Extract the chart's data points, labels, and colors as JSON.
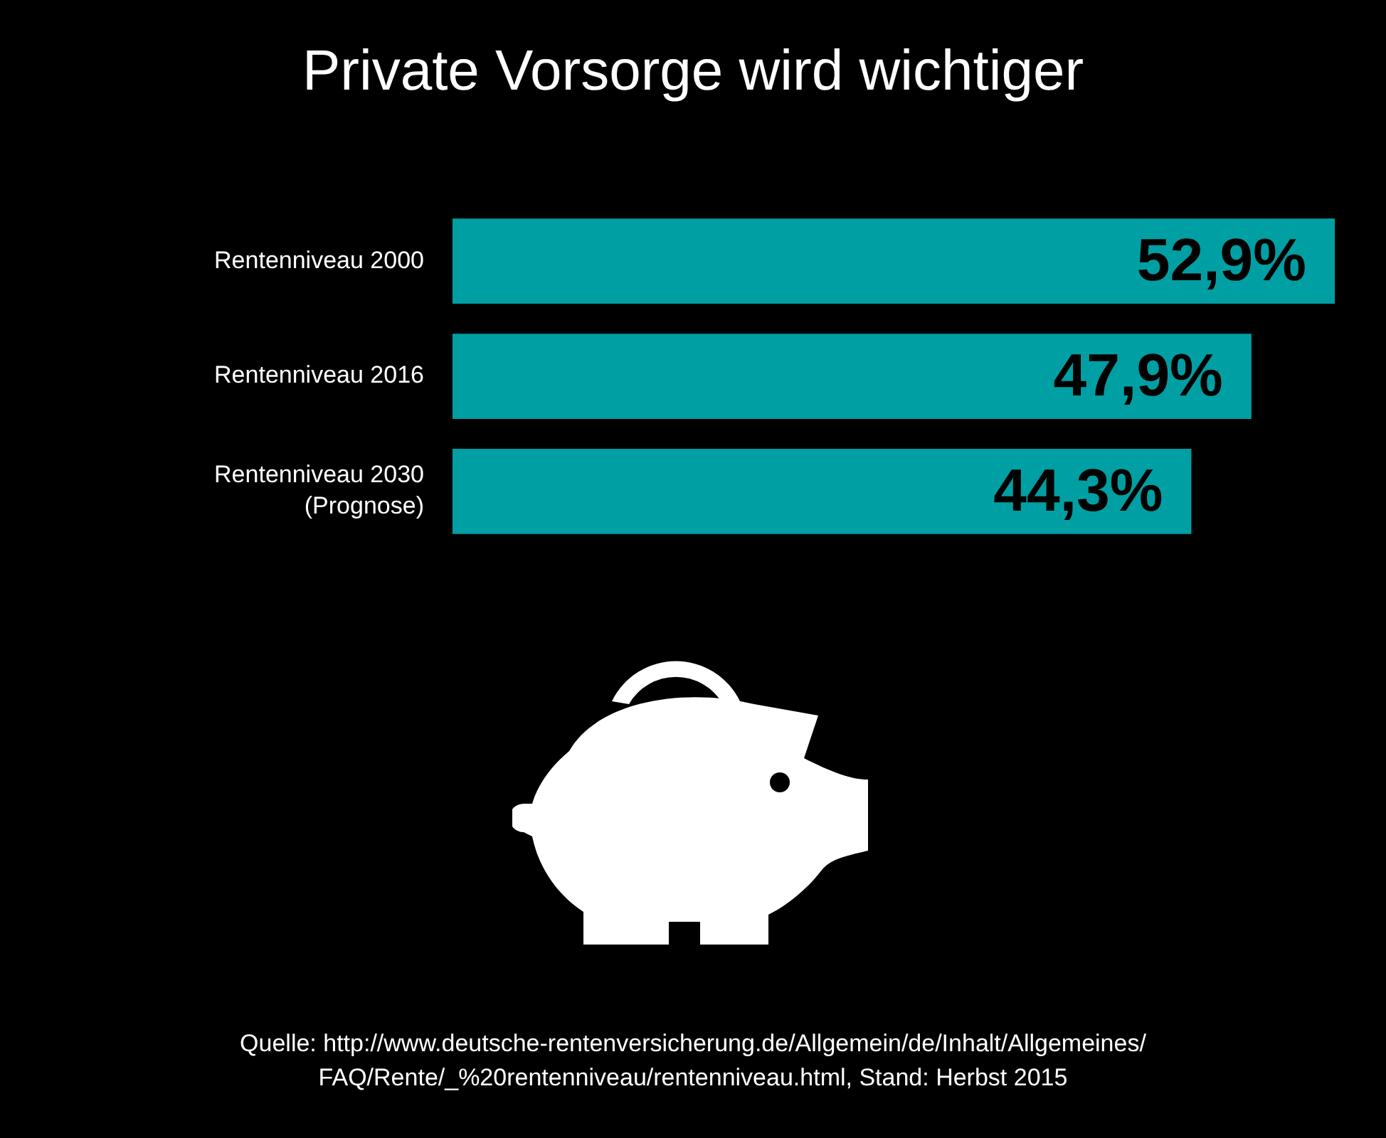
{
  "chart_data": {
    "type": "bar",
    "orientation": "horizontal",
    "title": "Private Vorsorge wird wichtiger",
    "categories": [
      "Rentenniveau 2000",
      "Rentenniveau 2016",
      "Rentenniveau 2030\n(Prognose)"
    ],
    "values": [
      52.9,
      47.9,
      44.3
    ],
    "value_labels": [
      "52,9%",
      "47,9%",
      "44,3%"
    ],
    "color": "#009fa3",
    "annotations": [
      "Quelle: http://www.deutsche-rentenversicherung.de/Allgemein/de/Inhalt/Allgemeines/\nFAQ/Rente/_%20rentenniveau/rentenniveau.html, Stand: Herbst 2015"
    ]
  }
}
